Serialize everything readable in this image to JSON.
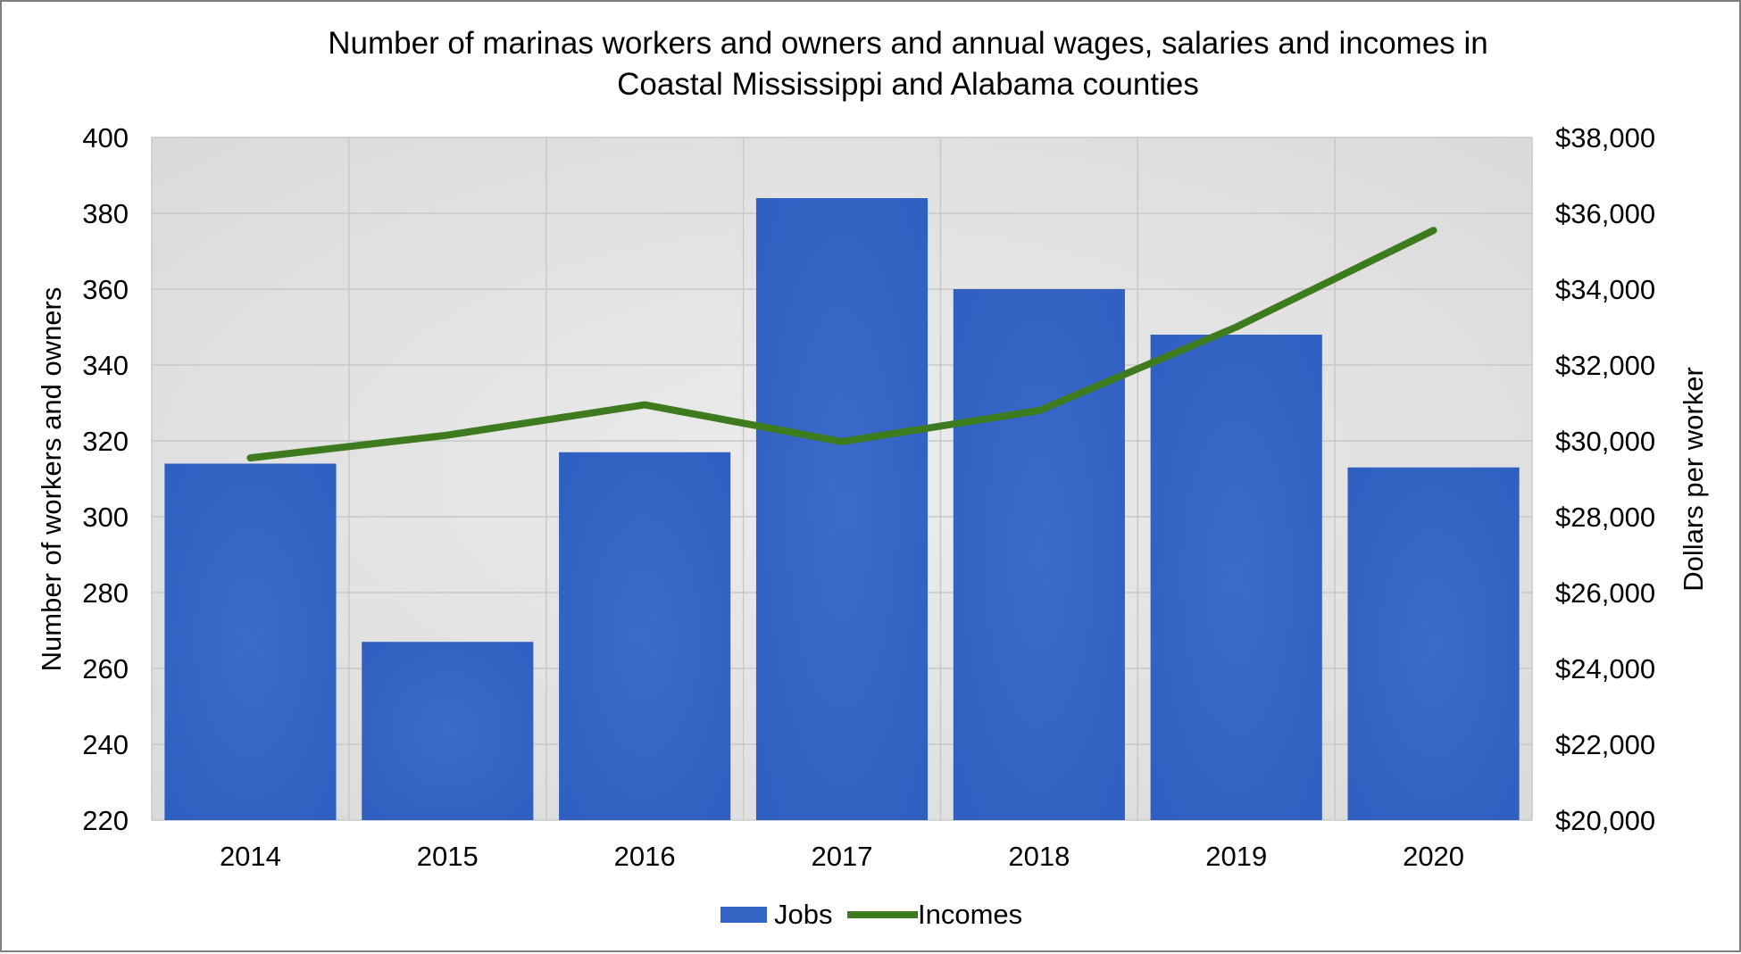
{
  "chart_data": {
    "type": "bar",
    "title": "Number of marinas workers and owners and annual wages, salaries and incomes in Coastal Mississippi and Alabama counties",
    "title_lines": [
      "Number of marinas workers and owners and annual wages, salaries and incomes in",
      "Coastal Mississippi and Alabama counties"
    ],
    "categories": [
      "2014",
      "2015",
      "2016",
      "2017",
      "2018",
      "2019",
      "2020"
    ],
    "ylabel": "Number of workers and owners",
    "y2label": "Dollars per worker",
    "ylim": [
      220,
      400
    ],
    "y2lim": [
      20000,
      38000
    ],
    "yticks": [
      "400",
      "380",
      "360",
      "340",
      "320",
      "300",
      "280",
      "260",
      "240",
      "220"
    ],
    "y2ticks": [
      "$38,000",
      "$36,000",
      "$34,000",
      "$32,000",
      "$30,000",
      "$28,000",
      "$26,000",
      "$24,000",
      "$22,000",
      "$20,000"
    ],
    "series": [
      {
        "name": "Jobs",
        "type": "bar",
        "axis": "left",
        "color": "#3565c4",
        "values": [
          314,
          267,
          317,
          384,
          360,
          348,
          313
        ]
      },
      {
        "name": "Incomes",
        "type": "line",
        "axis": "right",
        "color": "#3e7a1e",
        "values": [
          29550,
          30150,
          30950,
          29980,
          30800,
          33000,
          35550
        ]
      }
    ],
    "grid": true,
    "legend": "bottom-center",
    "colors": {
      "plot_background": "#e6e6e6",
      "grid": "#c8c8c8"
    }
  }
}
